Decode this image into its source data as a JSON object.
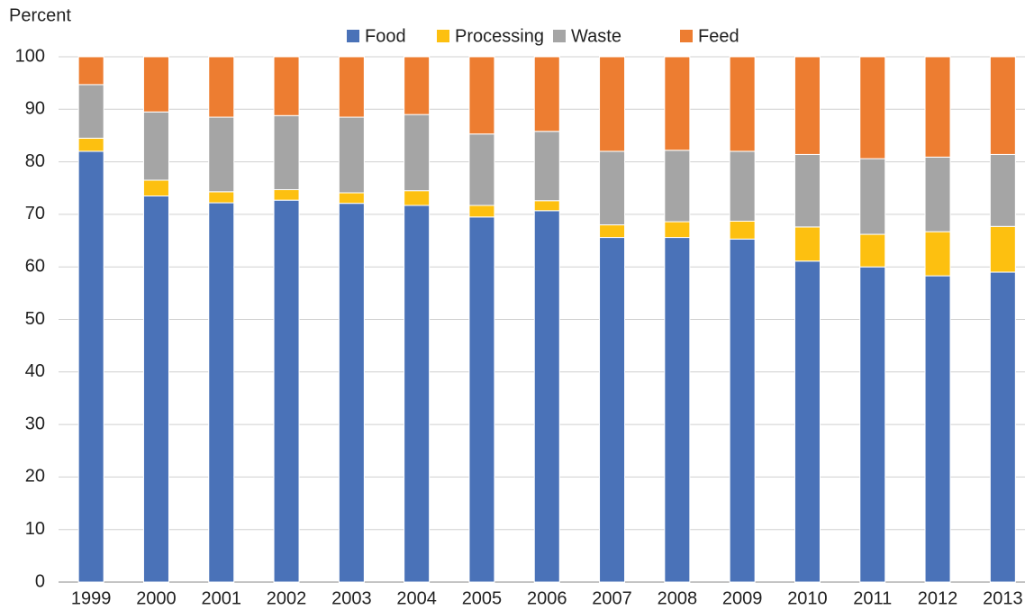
{
  "chart_data": {
    "type": "stacked_bar",
    "y_label": "Percent",
    "categories": [
      "1999",
      "2000",
      "2001",
      "2002",
      "2003",
      "2004",
      "2005",
      "2006",
      "2007",
      "2008",
      "2009",
      "2010",
      "2011",
      "2012",
      "2013"
    ],
    "series": [
      {
        "name": "Food",
        "color": "#4a72b8",
        "values": [
          82,
          73.5,
          72.2,
          72.7,
          72.1,
          71.7,
          69.5,
          70.7,
          65.6,
          65.6,
          65.3,
          61.1,
          60,
          58.3,
          59
        ]
      },
      {
        "name": "Processing",
        "color": "#fdc010",
        "values": [
          2.5,
          3,
          2.1,
          2,
          2,
          2.8,
          2.2,
          1.9,
          2.4,
          3,
          3.4,
          6.5,
          6.2,
          8.4,
          8.7
        ]
      },
      {
        "name": "Waste",
        "color": "#a5a5a5",
        "values": [
          10.2,
          13,
          14.2,
          14.1,
          14.4,
          14.5,
          13.6,
          13.2,
          14,
          13.6,
          13.3,
          13.8,
          14.4,
          14.2,
          13.7
        ]
      },
      {
        "name": "Feed",
        "color": "#ed7d31",
        "values": [
          5.3,
          10.5,
          11.5,
          11.2,
          11.5,
          11,
          14.7,
          14.2,
          18,
          17.8,
          18,
          18.6,
          19.4,
          19.1,
          18.6
        ]
      }
    ],
    "ylim": [
      0,
      100
    ],
    "yticks": [
      0,
      10,
      20,
      30,
      40,
      50,
      60,
      70,
      80,
      90,
      100
    ],
    "grid": true,
    "legend": "top"
  }
}
